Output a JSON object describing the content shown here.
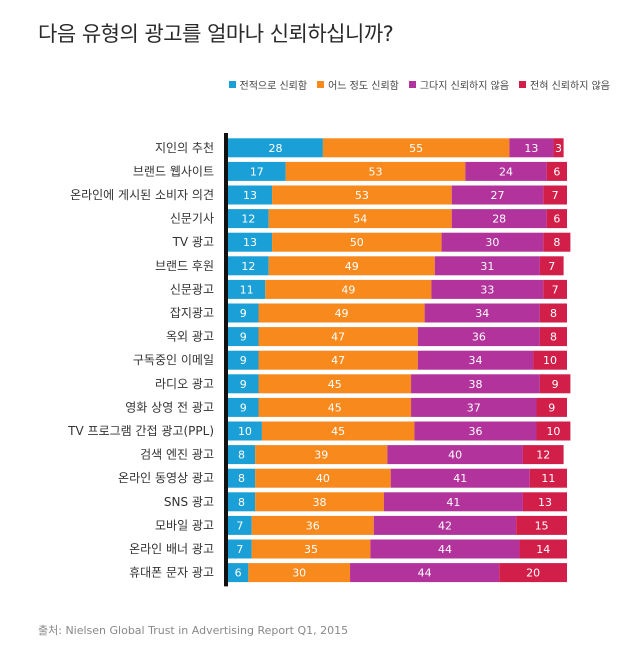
{
  "title": "다음 유형의 광고를 얼마나 신뢰하십니까?",
  "source": "출처: Nielsen Global Trust in Advertising Report Q1, 2015",
  "chart_data": {
    "type": "bar",
    "orientation": "horizontal",
    "stacked": true,
    "legend_position": "top-right",
    "grid": false,
    "xlim": [
      0,
      100
    ],
    "categories": [
      "지인의 추천",
      "브랜드 웹사이트",
      "온라인에 게시된 소비자 의견",
      "신문기사",
      "TV 광고",
      "브랜드 후원",
      "신문광고",
      "잡지광고",
      "옥외 광고",
      "구독중인 이메일",
      "라디오 광고",
      "영화 상영 전 광고",
      "TV 프로그램 간접 광고(PPL)",
      "검색 엔진 광고",
      "온라인 동영상 광고",
      "SNS 광고",
      "모바일 광고",
      "온라인 배너 광고",
      "휴대폰 문자 광고"
    ],
    "series": [
      {
        "name": "전적으로 신뢰함",
        "color": "#1a9fd6",
        "values": [
          28,
          17,
          13,
          12,
          13,
          12,
          11,
          9,
          9,
          9,
          9,
          9,
          10,
          8,
          8,
          8,
          7,
          7,
          6
        ]
      },
      {
        "name": "어느 정도 신뢰함",
        "color": "#f7891d",
        "values": [
          55,
          53,
          53,
          54,
          50,
          49,
          49,
          49,
          47,
          47,
          45,
          45,
          45,
          39,
          40,
          38,
          36,
          35,
          30
        ]
      },
      {
        "name": "그다지 신뢰하지 않음",
        "color": "#b2339c",
        "values": [
          13,
          24,
          27,
          28,
          30,
          31,
          33,
          34,
          36,
          34,
          38,
          37,
          36,
          40,
          41,
          41,
          42,
          44,
          44
        ]
      },
      {
        "name": "전혀 신뢰하지 않음",
        "color": "#d21f4a",
        "values": [
          3,
          6,
          7,
          6,
          8,
          7,
          7,
          8,
          8,
          10,
          9,
          9,
          10,
          12,
          11,
          13,
          15,
          14,
          20
        ]
      }
    ]
  }
}
